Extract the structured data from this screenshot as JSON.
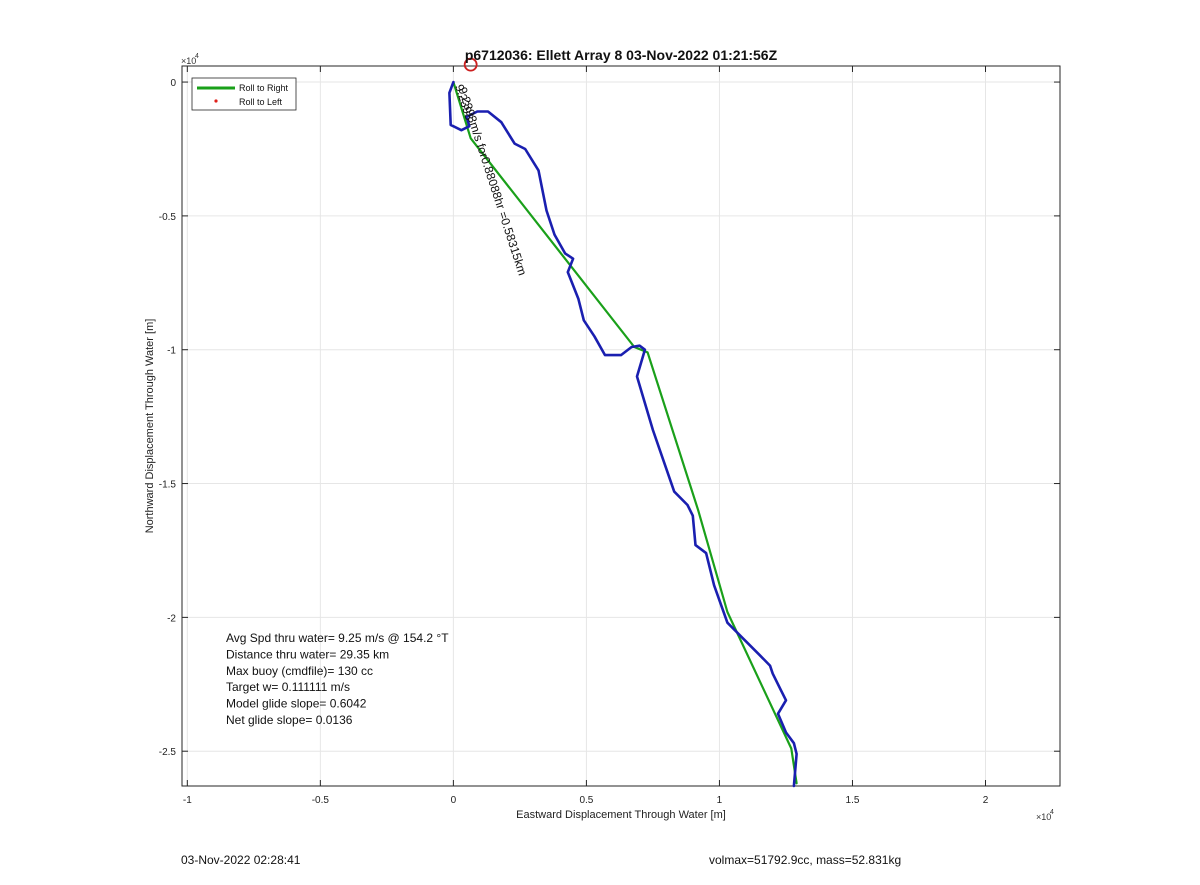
{
  "chart_data": {
    "type": "line",
    "title": "p6712036: Ellett Array 8 03-Nov-2022 01:21:56Z",
    "xlabel": "Eastward Displacement Through Water [m]",
    "ylabel": "Northward Displacement Through Water [m]",
    "x_exponent_label": "×10",
    "x_exponent_power": "4",
    "y_exponent_label": "×10",
    "y_exponent_power": "4",
    "xlim": [
      -10200,
      22800
    ],
    "ylim": [
      -26300,
      600
    ],
    "xticks": [
      -10000,
      -5000,
      0,
      5000,
      10000,
      15000,
      20000
    ],
    "xtick_labels": [
      "-1",
      "-0.5",
      "0",
      "0.5",
      "1",
      "1.5",
      "2"
    ],
    "yticks": [
      0,
      -5000,
      -10000,
      -15000,
      -20000,
      -25000
    ],
    "ytick_labels": [
      "0",
      "-0.5",
      "-1",
      "-1.5",
      "-2",
      "-2.5"
    ],
    "grid": true,
    "legend_position": "top-left",
    "legend": [
      {
        "label": "Roll to Right",
        "style": "line",
        "color": "#1aa01a"
      },
      {
        "label": "Roll to Left",
        "style": "dot",
        "color": "#e0201a"
      }
    ],
    "series": [
      {
        "name": "Roll to Right",
        "color": "#1aa01a",
        "x": [
          0,
          650,
          6800,
          7300,
          9200,
          10300,
          12700,
          12900
        ],
        "y": [
          0,
          -2100,
          -9900,
          -10100,
          -16000,
          -19800,
          -24900,
          -26200
        ]
      },
      {
        "color": "#1a1fb0",
        "x": [
          0,
          -150,
          -100,
          300,
          600,
          500,
          900,
          1300,
          1800,
          2300,
          2700,
          3200,
          3500,
          3800,
          4200,
          4500,
          4300,
          4700,
          4900,
          5300,
          5700,
          6300,
          6700,
          7000,
          7200,
          6900,
          7500,
          8300,
          8800,
          9000,
          9100,
          9500,
          9800,
          10300,
          10900,
          11500,
          11900,
          12000,
          12300,
          12500,
          12200,
          12500,
          12800,
          12900,
          12800
        ],
        "y": [
          0,
          -400,
          -1600,
          -1800,
          -1650,
          -1300,
          -1100,
          -1100,
          -1500,
          -2300,
          -2500,
          -3300,
          -4800,
          -5700,
          -6400,
          -6600,
          -7100,
          -8100,
          -8900,
          -9500,
          -10200,
          -10200,
          -9900,
          -9850,
          -10000,
          -11000,
          -13000,
          -15300,
          -15800,
          -16200,
          -17300,
          -17600,
          -18800,
          -20200,
          -20800,
          -21400,
          -21800,
          -22100,
          -22700,
          -23100,
          -23600,
          -24300,
          -24700,
          -25100,
          -26300
        ]
      }
    ],
    "current_position_marker": {
      "x": 650,
      "y": 650,
      "color": "#cc1f1f"
    },
    "path_label": {
      "text": "9.2393m/s for0.88088hr =0.58315km",
      "x": 180,
      "y": -250,
      "angle_deg": 72
    },
    "overlap_label": {
      "text": "9.2393",
      "x": 60,
      "y": -150,
      "angle_deg": 72
    },
    "annotations": [
      "Avg Spd thru water=  9.25 m/s @ 154.2 °T",
      "Distance thru water= 29.35 km",
      "Max buoy (cmdfile)= 130 cc",
      "Target w= 0.111111 m/s",
      "Model glide slope= 0.6042",
      "Net glide slope= 0.0136"
    ]
  },
  "footer": {
    "timestamp": "03-Nov-2022 02:28:41",
    "summary": "volmax=51792.9cc, mass=52.831kg"
  }
}
